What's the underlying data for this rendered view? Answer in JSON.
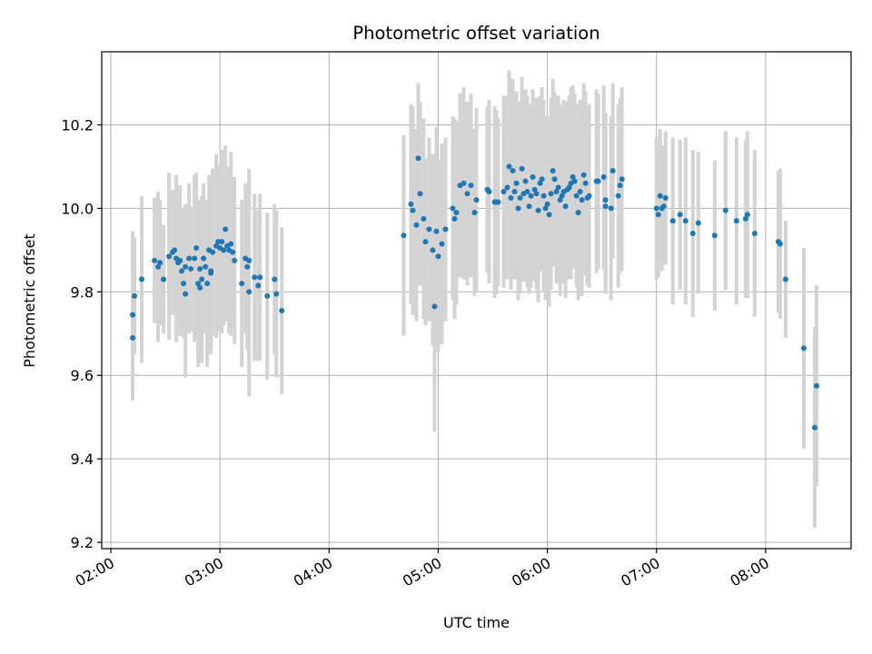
{
  "chart_data": {
    "type": "scatter",
    "title": "Photometric offset variation",
    "xlabel": "UTC time",
    "ylabel": "Photometric offset",
    "x_unit": "UTC time (HH:MM)",
    "xlim": [
      "01:55",
      "08:47"
    ],
    "ylim": [
      9.185,
      10.375
    ],
    "x_ticks": [
      "02:00",
      "03:00",
      "04:00",
      "05:00",
      "06:00",
      "07:00",
      "08:00"
    ],
    "y_ticks": [
      "9.2",
      "9.4",
      "9.6",
      "9.8",
      "10.0",
      "10.2"
    ],
    "grid": true,
    "colors": {
      "points": "#1f77b4",
      "errorbars": "#d3d3d3",
      "grid": "#b0b0b0"
    },
    "points": [
      {
        "t": "02:12",
        "y": 9.745,
        "err": 0.2
      },
      {
        "t": "02:12",
        "y": 9.69,
        "err": 0.15
      },
      {
        "t": "02:13",
        "y": 9.79,
        "err": 0.14
      },
      {
        "t": "02:17",
        "y": 9.83,
        "err": 0.2
      },
      {
        "t": "02:24",
        "y": 9.875,
        "err": 0.15
      },
      {
        "t": "02:26",
        "y": 9.86,
        "err": 0.18
      },
      {
        "t": "02:27",
        "y": 9.87,
        "err": 0.15
      },
      {
        "t": "02:29",
        "y": 9.83,
        "err": 0.13
      },
      {
        "t": "02:32",
        "y": 9.885,
        "err": 0.2
      },
      {
        "t": "02:34",
        "y": 9.895,
        "err": 0.15
      },
      {
        "t": "02:35",
        "y": 9.9,
        "err": 0.12
      },
      {
        "t": "02:36",
        "y": 9.88,
        "err": 0.2
      },
      {
        "t": "02:37",
        "y": 9.87,
        "err": 0.15
      },
      {
        "t": "02:38",
        "y": 9.875,
        "err": 0.18
      },
      {
        "t": "02:39",
        "y": 9.85,
        "err": 0.15
      },
      {
        "t": "02:40",
        "y": 9.82,
        "err": 0.13
      },
      {
        "t": "02:41",
        "y": 9.795,
        "err": 0.2
      },
      {
        "t": "02:41",
        "y": 9.86,
        "err": 0.15
      },
      {
        "t": "02:43",
        "y": 9.88,
        "err": 0.18
      },
      {
        "t": "02:44",
        "y": 9.855,
        "err": 0.15
      },
      {
        "t": "02:46",
        "y": 9.88,
        "err": 0.2
      },
      {
        "t": "02:47",
        "y": 9.905,
        "err": 0.18
      },
      {
        "t": "02:48",
        "y": 9.82,
        "err": 0.2
      },
      {
        "t": "02:49",
        "y": 9.81,
        "err": 0.18
      },
      {
        "t": "02:49",
        "y": 9.855,
        "err": 0.15
      },
      {
        "t": "02:50",
        "y": 9.83,
        "err": 0.2
      },
      {
        "t": "02:51",
        "y": 9.88,
        "err": 0.18
      },
      {
        "t": "02:52",
        "y": 9.86,
        "err": 0.15
      },
      {
        "t": "02:53",
        "y": 9.82,
        "err": 0.2
      },
      {
        "t": "02:54",
        "y": 9.9,
        "err": 0.18
      },
      {
        "t": "02:55",
        "y": 9.85,
        "err": 0.2
      },
      {
        "t": "02:55",
        "y": 9.845,
        "err": 0.18
      },
      {
        "t": "02:56",
        "y": 9.895,
        "err": 0.2
      },
      {
        "t": "02:58",
        "y": 9.91,
        "err": 0.22
      },
      {
        "t": "02:59",
        "y": 9.92,
        "err": 0.18
      },
      {
        "t": "03:00",
        "y": 9.905,
        "err": 0.2
      },
      {
        "t": "03:01",
        "y": 9.92,
        "err": 0.22
      },
      {
        "t": "03:02",
        "y": 9.9,
        "err": 0.18
      },
      {
        "t": "03:03",
        "y": 9.95,
        "err": 0.2
      },
      {
        "t": "03:04",
        "y": 9.91,
        "err": 0.18
      },
      {
        "t": "03:05",
        "y": 9.9,
        "err": 0.2
      },
      {
        "t": "03:06",
        "y": 9.915,
        "err": 0.22
      },
      {
        "t": "03:07",
        "y": 9.895,
        "err": 0.18
      },
      {
        "t": "03:08",
        "y": 9.875,
        "err": 0.2
      },
      {
        "t": "03:12",
        "y": 9.82,
        "err": 0.2
      },
      {
        "t": "03:14",
        "y": 9.88,
        "err": 0.18
      },
      {
        "t": "03:15",
        "y": 9.86,
        "err": 0.2
      },
      {
        "t": "03:16",
        "y": 9.875,
        "err": 0.22
      },
      {
        "t": "03:16",
        "y": 9.8,
        "err": 0.25
      },
      {
        "t": "03:19",
        "y": 9.835,
        "err": 0.2
      },
      {
        "t": "03:21",
        "y": 9.815,
        "err": 0.18
      },
      {
        "t": "03:22",
        "y": 9.835,
        "err": 0.2
      },
      {
        "t": "03:26",
        "y": 9.79,
        "err": 0.2
      },
      {
        "t": "03:30",
        "y": 9.83,
        "err": 0.18
      },
      {
        "t": "03:31",
        "y": 9.795,
        "err": 0.2
      },
      {
        "t": "03:34",
        "y": 9.755,
        "err": 0.2
      },
      {
        "t": "04:41",
        "y": 9.935,
        "err": 0.24
      },
      {
        "t": "04:45",
        "y": 10.01,
        "err": 0.24
      },
      {
        "t": "04:46",
        "y": 9.995,
        "err": 0.25
      },
      {
        "t": "04:48",
        "y": 9.96,
        "err": 0.23
      },
      {
        "t": "04:49",
        "y": 10.12,
        "err": 0.18
      },
      {
        "t": "04:50",
        "y": 10.035,
        "err": 0.22
      },
      {
        "t": "04:52",
        "y": 9.975,
        "err": 0.24
      },
      {
        "t": "04:53",
        "y": 9.92,
        "err": 0.2
      },
      {
        "t": "04:55",
        "y": 9.95,
        "err": 0.22
      },
      {
        "t": "04:57",
        "y": 9.9,
        "err": 0.23
      },
      {
        "t": "04:58",
        "y": 9.765,
        "err": 0.3
      },
      {
        "t": "04:59",
        "y": 9.945,
        "err": 0.25
      },
      {
        "t": "05:00",
        "y": 9.885,
        "err": 0.23
      },
      {
        "t": "05:02",
        "y": 9.915,
        "err": 0.24
      },
      {
        "t": "05:04",
        "y": 9.95,
        "err": 0.22
      },
      {
        "t": "05:08",
        "y": 10.0,
        "err": 0.22
      },
      {
        "t": "05:09",
        "y": 9.975,
        "err": 0.24
      },
      {
        "t": "05:10",
        "y": 9.99,
        "err": 0.22
      },
      {
        "t": "05:12",
        "y": 10.055,
        "err": 0.22
      },
      {
        "t": "05:14",
        "y": 10.06,
        "err": 0.23
      },
      {
        "t": "05:16",
        "y": 10.035,
        "err": 0.22
      },
      {
        "t": "05:18",
        "y": 10.055,
        "err": 0.22
      },
      {
        "t": "05:20",
        "y": 9.99,
        "err": 0.2
      },
      {
        "t": "05:21",
        "y": 10.02,
        "err": 0.22
      },
      {
        "t": "05:27",
        "y": 10.045,
        "err": 0.2
      },
      {
        "t": "05:28",
        "y": 10.04,
        "err": 0.22
      },
      {
        "t": "05:31",
        "y": 10.015,
        "err": 0.23
      },
      {
        "t": "05:32",
        "y": 10.015,
        "err": 0.22
      },
      {
        "t": "05:33",
        "y": 10.015,
        "err": 0.2
      },
      {
        "t": "05:36",
        "y": 10.04,
        "err": 0.23
      },
      {
        "t": "05:38",
        "y": 10.05,
        "err": 0.22
      },
      {
        "t": "05:39",
        "y": 10.1,
        "err": 0.23
      },
      {
        "t": "05:40",
        "y": 10.025,
        "err": 0.22
      },
      {
        "t": "05:41",
        "y": 10.09,
        "err": 0.22
      },
      {
        "t": "05:42",
        "y": 10.04,
        "err": 0.21
      },
      {
        "t": "05:43",
        "y": 10.06,
        "err": 0.22
      },
      {
        "t": "05:44",
        "y": 10.0,
        "err": 0.22
      },
      {
        "t": "05:45",
        "y": 10.025,
        "err": 0.23
      },
      {
        "t": "05:46",
        "y": 10.095,
        "err": 0.22
      },
      {
        "t": "05:47",
        "y": 10.035,
        "err": 0.21
      },
      {
        "t": "05:48",
        "y": 10.065,
        "err": 0.22
      },
      {
        "t": "05:49",
        "y": 10.04,
        "err": 0.23
      },
      {
        "t": "05:50",
        "y": 10.005,
        "err": 0.21
      },
      {
        "t": "05:51",
        "y": 10.03,
        "err": 0.22
      },
      {
        "t": "05:52",
        "y": 10.075,
        "err": 0.21
      },
      {
        "t": "05:53",
        "y": 10.045,
        "err": 0.22
      },
      {
        "t": "05:54",
        "y": 10.035,
        "err": 0.23
      },
      {
        "t": "05:55",
        "y": 9.995,
        "err": 0.22
      },
      {
        "t": "05:56",
        "y": 10.06,
        "err": 0.21
      },
      {
        "t": "05:57",
        "y": 10.07,
        "err": 0.22
      },
      {
        "t": "05:58",
        "y": 10.03,
        "err": 0.23
      },
      {
        "t": "05:59",
        "y": 10.0,
        "err": 0.22
      },
      {
        "t": "06:00",
        "y": 10.01,
        "err": 0.21
      },
      {
        "t": "06:01",
        "y": 9.985,
        "err": 0.22
      },
      {
        "t": "06:02",
        "y": 10.035,
        "err": 0.23
      },
      {
        "t": "06:03",
        "y": 10.09,
        "err": 0.22
      },
      {
        "t": "06:04",
        "y": 10.07,
        "err": 0.21
      },
      {
        "t": "06:05",
        "y": 10.04,
        "err": 0.22
      },
      {
        "t": "06:06",
        "y": 10.05,
        "err": 0.22
      },
      {
        "t": "06:07",
        "y": 10.02,
        "err": 0.23
      },
      {
        "t": "06:08",
        "y": 10.03,
        "err": 0.21
      },
      {
        "t": "06:09",
        "y": 10.04,
        "err": 0.22
      },
      {
        "t": "06:10",
        "y": 10.005,
        "err": 0.22
      },
      {
        "t": "06:11",
        "y": 10.045,
        "err": 0.21
      },
      {
        "t": "06:12",
        "y": 10.05,
        "err": 0.22
      },
      {
        "t": "06:13",
        "y": 10.06,
        "err": 0.23
      },
      {
        "t": "06:14",
        "y": 10.075,
        "err": 0.22
      },
      {
        "t": "06:15",
        "y": 10.065,
        "err": 0.21
      },
      {
        "t": "06:16",
        "y": 10.03,
        "err": 0.22
      },
      {
        "t": "06:17",
        "y": 9.99,
        "err": 0.21
      },
      {
        "t": "06:18",
        "y": 10.04,
        "err": 0.22
      },
      {
        "t": "06:19",
        "y": 10.02,
        "err": 0.23
      },
      {
        "t": "06:20",
        "y": 10.08,
        "err": 0.22
      },
      {
        "t": "06:21",
        "y": 10.06,
        "err": 0.22
      },
      {
        "t": "06:22",
        "y": 10.025,
        "err": 0.21
      },
      {
        "t": "06:23",
        "y": 10.03,
        "err": 0.22
      },
      {
        "t": "06:27",
        "y": 10.065,
        "err": 0.22
      },
      {
        "t": "06:28",
        "y": 10.065,
        "err": 0.21
      },
      {
        "t": "06:31",
        "y": 10.075,
        "err": 0.22
      },
      {
        "t": "06:32",
        "y": 10.005,
        "err": 0.21
      },
      {
        "t": "06:35",
        "y": 10.0,
        "err": 0.22
      },
      {
        "t": "06:36",
        "y": 10.09,
        "err": 0.21
      },
      {
        "t": "06:39",
        "y": 10.03,
        "err": 0.22
      },
      {
        "t": "06:40",
        "y": 10.055,
        "err": 0.21
      },
      {
        "t": "06:41",
        "y": 10.07,
        "err": 0.22
      },
      {
        "t": "06:32",
        "y": 10.02,
        "err": 0.21
      },
      {
        "t": "07:00",
        "y": 10.0,
        "err": 0.17
      },
      {
        "t": "07:01",
        "y": 9.985,
        "err": 0.15
      },
      {
        "t": "07:02",
        "y": 10.03,
        "err": 0.16
      },
      {
        "t": "07:03",
        "y": 10.0,
        "err": 0.15
      },
      {
        "t": "07:04",
        "y": 10.005,
        "err": 0.14
      },
      {
        "t": "07:05",
        "y": 10.025,
        "err": 0.16
      },
      {
        "t": "07:09",
        "y": 9.97,
        "err": 0.2
      },
      {
        "t": "07:13",
        "y": 9.985,
        "err": 0.18
      },
      {
        "t": "07:16",
        "y": 9.97,
        "err": 0.2
      },
      {
        "t": "07:20",
        "y": 9.94,
        "err": 0.2
      },
      {
        "t": "07:23",
        "y": 9.965,
        "err": 0.17
      },
      {
        "t": "07:32",
        "y": 9.935,
        "err": 0.18
      },
      {
        "t": "07:38",
        "y": 9.995,
        "err": 0.19
      },
      {
        "t": "07:44",
        "y": 9.97,
        "err": 0.2
      },
      {
        "t": "07:49",
        "y": 9.975,
        "err": 0.19
      },
      {
        "t": "07:50",
        "y": 9.985,
        "err": 0.2
      },
      {
        "t": "07:54",
        "y": 9.94,
        "err": 0.2
      },
      {
        "t": "08:07",
        "y": 9.92,
        "err": 0.17
      },
      {
        "t": "08:08",
        "y": 9.915,
        "err": 0.18
      },
      {
        "t": "08:11",
        "y": 9.83,
        "err": 0.14
      },
      {
        "t": "08:21",
        "y": 9.665,
        "err": 0.24
      },
      {
        "t": "08:27",
        "y": 9.475,
        "err": 0.24
      },
      {
        "t": "08:28",
        "y": 9.575,
        "err": 0.24
      }
    ]
  }
}
